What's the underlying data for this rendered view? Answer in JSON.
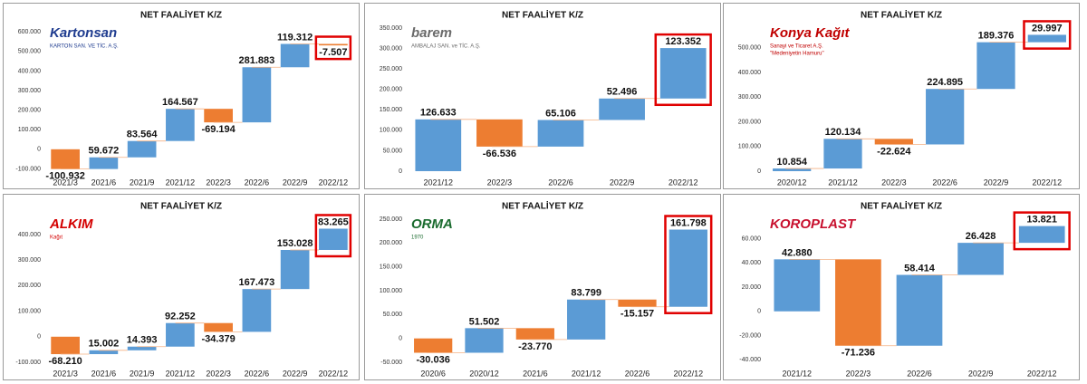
{
  "chart_data": [
    {
      "type": "waterfall",
      "title": "NET FAALİYET K/Z",
      "logo": [
        "Kartonsan",
        "KARTON SAN. VE TİC. A.Ş."
      ],
      "logo_color": "#1f3c8f",
      "categories": [
        "2021/3",
        "2021/6",
        "2021/9",
        "2021/12",
        "2022/3",
        "2022/6",
        "2022/9",
        "2022/12"
      ],
      "values": [
        -100932,
        59672,
        83564,
        164567,
        -69194,
        281883,
        119312,
        -7507
      ],
      "value_labels": [
        "-100.932",
        "59.672",
        "83.564",
        "164.567",
        "-69.194",
        "281.883",
        "119.312",
        "-7.507"
      ],
      "ylim": [
        -112000,
        620000
      ],
      "yticks": [
        {
          "value": -100000,
          "label": "-100.000"
        },
        0,
        {
          "value": 100000,
          "label": "100.000"
        },
        {
          "value": 200000,
          "label": "200.000"
        },
        {
          "value": 300000,
          "label": "300.000"
        },
        {
          "value": 400000,
          "label": "400.000"
        },
        {
          "value": 500000,
          "label": "500.000"
        },
        {
          "value": 600000,
          "label": "600.000"
        }
      ],
      "colors": {
        "increase": "#5b9bd5",
        "decrease": "#ed7d31"
      },
      "highlight_index": 7,
      "highlight_color": "#e00000",
      "grid": false
    },
    {
      "type": "waterfall",
      "title": "NET FAALİYET K/Z",
      "logo": [
        "barem",
        "AMBALAJ SAN. ve TİC. A.Ş."
      ],
      "logo_color": "#6b6b6b",
      "categories": [
        "2021/12",
        "2022/3",
        "2022/6",
        "2022/9",
        "2022/12"
      ],
      "values": [
        126633,
        -66536,
        65106,
        52496,
        123352
      ],
      "value_labels": [
        "126.633",
        "-66.536",
        "65.106",
        "52.496",
        "123.352"
      ],
      "ylim": [
        0,
        350000
      ],
      "yticks": [
        0,
        {
          "value": 50000,
          "label": "50.000"
        },
        {
          "value": 100000,
          "label": "100.000"
        },
        {
          "value": 150000,
          "label": "150.000"
        },
        {
          "value": 200000,
          "label": "200.000"
        },
        {
          "value": 250000,
          "label": "250.000"
        },
        {
          "value": 300000,
          "label": "300.000"
        },
        {
          "value": 350000,
          "label": "350.000"
        }
      ],
      "colors": {
        "increase": "#5b9bd5",
        "decrease": "#ed7d31"
      },
      "highlight_index": 4,
      "highlight_color": "#e00000",
      "grid": false
    },
    {
      "type": "waterfall",
      "title": "NET FAALİYET K/Z",
      "logo": [
        "Konya Kağıt",
        "Sanayi ve Ticaret A.Ş.",
        "\"Medeniyetin Hamuru\""
      ],
      "logo_color": "#c00000",
      "categories": [
        "2020/12",
        "2021/12",
        "2022/3",
        "2022/6",
        "2022/9",
        "2022/12"
      ],
      "values": [
        10854,
        120134,
        -22624,
        224895,
        189376,
        29997
      ],
      "value_labels": [
        "10.854",
        "120.134",
        "-22.624",
        "224.895",
        "189.376",
        "29.997"
      ],
      "ylim": [
        0,
        580000
      ],
      "yticks": [
        0,
        {
          "value": 100000,
          "label": "100.000"
        },
        {
          "value": 200000,
          "label": "200.000"
        },
        {
          "value": 300000,
          "label": "300.000"
        },
        {
          "value": 400000,
          "label": "400.000"
        },
        {
          "value": 500000,
          "label": "500.000"
        }
      ],
      "colors": {
        "increase": "#5b9bd5",
        "decrease": "#ed7d31"
      },
      "highlight_index": 5,
      "highlight_color": "#e00000",
      "grid": false
    },
    {
      "type": "waterfall",
      "title": "NET FAALİYET K/Z",
      "logo": [
        "ALKIM",
        "Kağıt"
      ],
      "logo_color": "#d40000",
      "categories": [
        "2021/3",
        "2021/6",
        "2021/9",
        "2021/12",
        "2022/3",
        "2022/6",
        "2022/9",
        "2022/12"
      ],
      "values": [
        -68210,
        15002,
        14393,
        92252,
        -34379,
        167473,
        153028,
        83265
      ],
      "value_labels": [
        "-68.210",
        "15.002",
        "14.393",
        "92.252",
        "-34.379",
        "167.473",
        "153.028",
        "83.265"
      ],
      "ylim": [
        -100000,
        460000
      ],
      "yticks": [
        {
          "value": -100000,
          "label": "-100.000"
        },
        0,
        {
          "value": 100000,
          "label": "100.000"
        },
        {
          "value": 200000,
          "label": "200.000"
        },
        {
          "value": 300000,
          "label": "300.000"
        },
        {
          "value": 400000,
          "label": "400.000"
        }
      ],
      "colors": {
        "increase": "#5b9bd5",
        "decrease": "#ed7d31"
      },
      "highlight_index": 7,
      "highlight_color": "#e00000",
      "grid": false
    },
    {
      "type": "waterfall",
      "title": "NET FAALİYET K/Z",
      "logo": [
        "ORMA",
        "1970"
      ],
      "logo_color": "#1a6b2e",
      "categories": [
        "2020/6",
        "2020/12",
        "2021/6",
        "2021/12",
        "2022/6",
        "2022/12"
      ],
      "values": [
        -30036,
        51502,
        -23770,
        83799,
        -15157,
        161798
      ],
      "value_labels": [
        "-30.036",
        "51.502",
        "-23.770",
        "83.799",
        "-15.157",
        "161.798"
      ],
      "ylim": [
        -50000,
        250000
      ],
      "yticks": [
        {
          "value": -50000,
          "label": "-50.000"
        },
        0,
        {
          "value": 50000,
          "label": "50.000"
        },
        {
          "value": 100000,
          "label": "100.000"
        },
        {
          "value": 150000,
          "label": "150.000"
        },
        {
          "value": 200000,
          "label": "200.000"
        },
        {
          "value": 250000,
          "label": "250.000"
        }
      ],
      "colors": {
        "increase": "#5b9bd5",
        "decrease": "#ed7d31"
      },
      "highlight_index": 5,
      "highlight_color": "#e00000",
      "grid": false
    },
    {
      "type": "waterfall",
      "title": "NET FAALİYET K/Z",
      "logo": [
        "KOROPLAST"
      ],
      "logo_color": "#c8102e",
      "categories": [
        "2021/12",
        "2022/3",
        "2022/6",
        "2022/9",
        "2022/12"
      ],
      "values": [
        42880,
        -71236,
        58414,
        26428,
        13821
      ],
      "value_labels": [
        "42.880",
        "-71.236",
        "58.414",
        "26.428",
        "13.821"
      ],
      "ylim": [
        -42000,
        76000
      ],
      "yticks": [
        {
          "value": -40000,
          "label": "-40.000"
        },
        {
          "value": -20000,
          "label": "-20.000"
        },
        0,
        {
          "value": 20000,
          "label": "20.000"
        },
        {
          "value": 40000,
          "label": "40.000"
        },
        {
          "value": 60000,
          "label": "60.000"
        }
      ],
      "colors": {
        "increase": "#5b9bd5",
        "decrease": "#ed7d31"
      },
      "highlight_index": 4,
      "highlight_color": "#e00000",
      "grid": false
    }
  ]
}
